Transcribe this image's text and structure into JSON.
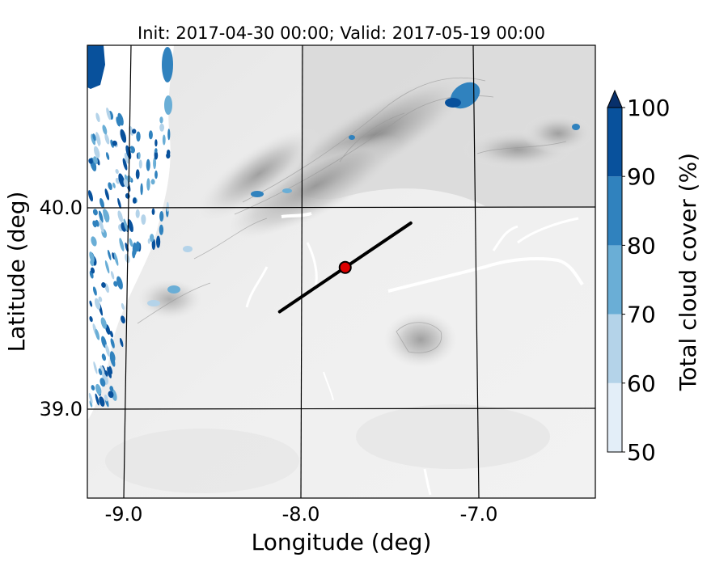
{
  "chart_data": {
    "type": "heatmap",
    "title": "Init: 2017-04-30 00:00; Valid: 2017-05-19 00:00",
    "xlabel": "Longitude (deg)",
    "ylabel": "Latitude (deg)",
    "x_ticks": [
      {
        "value": -9.0,
        "label": "-9.0"
      },
      {
        "value": -8.0,
        "label": "-8.0"
      },
      {
        "value": -7.0,
        "label": "-7.0"
      }
    ],
    "y_ticks": [
      {
        "value": 40.0,
        "label": "40.0"
      },
      {
        "value": 39.0,
        "label": "39.0"
      }
    ],
    "xlim": [
      -9.2,
      -6.35
    ],
    "ylim": [
      38.55,
      40.8
    ],
    "grid": true,
    "colorbar": {
      "label": "Total cloud cover (%)",
      "levels": [
        50,
        60,
        70,
        80,
        90,
        100
      ],
      "tick_labels": [
        "50",
        "60",
        "70",
        "80",
        "90",
        "100"
      ],
      "colors": [
        "#e3eef8",
        "#b4d3e9",
        "#6aaed6",
        "#3082be",
        "#08519c"
      ],
      "extend_color": "#08306b",
      "extend": "max"
    },
    "transect": {
      "start": {
        "lon": -8.12,
        "lat": 39.48
      },
      "end": {
        "lon": -7.38,
        "lat": 39.92
      }
    },
    "marker": {
      "lon": -7.75,
      "lat": 39.7,
      "color": "#dd0000"
    }
  }
}
